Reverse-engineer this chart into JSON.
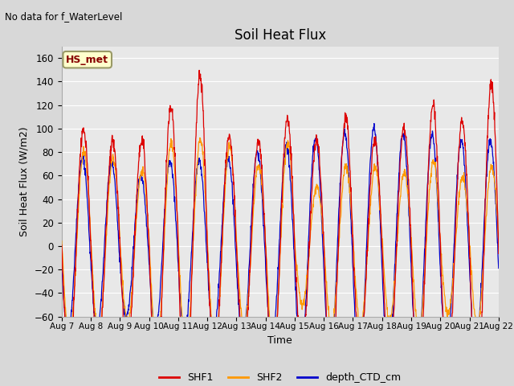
{
  "title": "Soil Heat Flux",
  "subtitle": "No data for f_WaterLevel",
  "xlabel": "Time",
  "ylabel": "Soil Heat Flux (W/m2)",
  "ylim": [
    -60,
    170
  ],
  "yticks": [
    -60,
    -40,
    -20,
    0,
    20,
    40,
    60,
    80,
    100,
    120,
    140,
    160
  ],
  "x_tick_labels": [
    "Aug 7",
    "Aug 8",
    "Aug 9",
    "Aug 10",
    "Aug 11",
    "Aug 12",
    "Aug 13",
    "Aug 14",
    "Aug 15",
    "Aug 16",
    "Aug 17",
    "Aug 18",
    "Aug 19",
    "Aug 20",
    "Aug 21",
    "Aug 22"
  ],
  "shf1_color": "#dd0000",
  "shf2_color": "#ff9900",
  "depth_color": "#0000cc",
  "legend_label_box": "HS_met",
  "legend_box_bg": "#ffffcc",
  "legend_box_border": "#999966",
  "fig_bg_color": "#d8d8d8",
  "plot_bg_color": "#e8e8e8",
  "grid_color": "#ffffff",
  "n_points": 1500
}
